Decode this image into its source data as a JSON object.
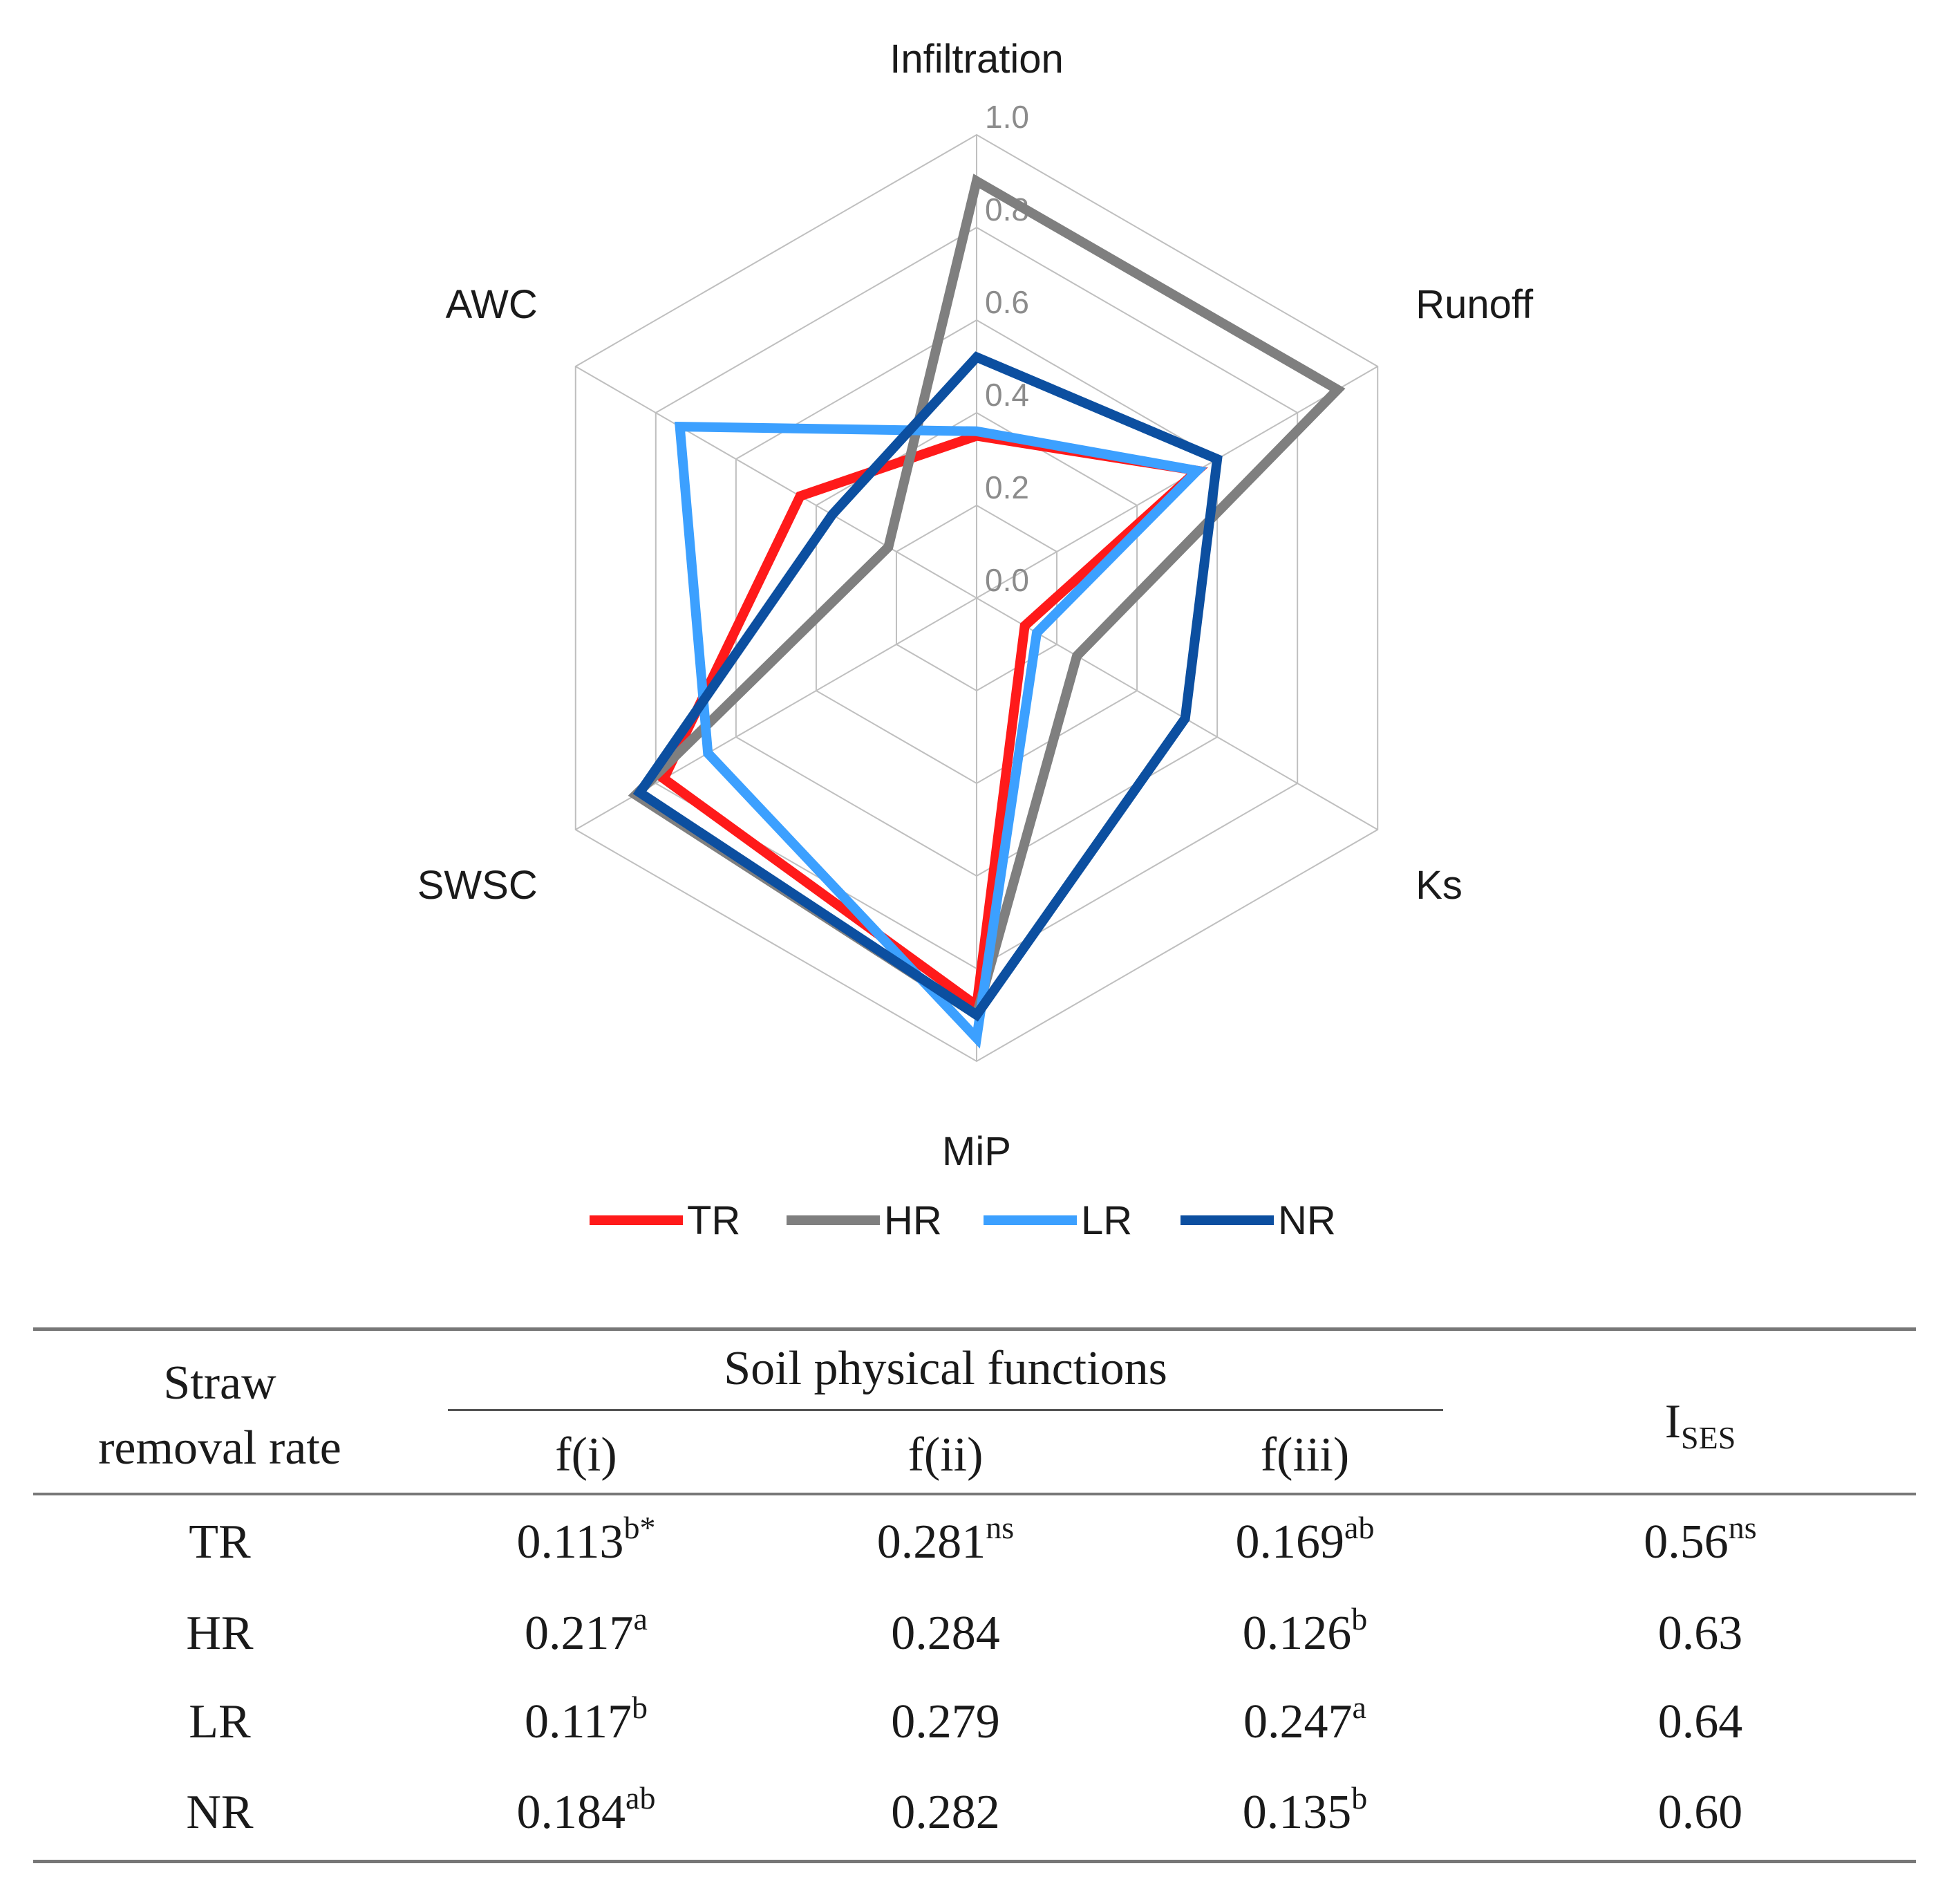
{
  "chart_data": {
    "type": "radar",
    "axes": [
      "Infiltration",
      "Runoff",
      "Ks",
      "MiP",
      "SWSC",
      "AWC"
    ],
    "rlim": [
      0.0,
      1.0
    ],
    "ticks": [
      "0.0",
      "0.2",
      "0.4",
      "0.6",
      "0.8",
      "1.0"
    ],
    "tick_values": [
      0.0,
      0.2,
      0.4,
      0.6,
      0.8,
      1.0
    ],
    "legend_position": "bottom",
    "series": [
      {
        "name": "TR",
        "color": "#ff1a1a",
        "values": [
          0.35,
          0.55,
          0.12,
          0.88,
          0.78,
          0.44
        ]
      },
      {
        "name": "HR",
        "color": "#7f7f7f",
        "values": [
          0.9,
          0.9,
          0.25,
          0.9,
          0.85,
          0.22
        ]
      },
      {
        "name": "LR",
        "color": "#3ca0ff",
        "values": [
          0.36,
          0.55,
          0.15,
          0.95,
          0.67,
          0.74
        ]
      },
      {
        "name": "NR",
        "color": "#0c4fa0",
        "values": [
          0.52,
          0.6,
          0.52,
          0.9,
          0.84,
          0.36
        ]
      }
    ]
  },
  "table": {
    "col_headers": {
      "straw_line1": "Straw",
      "straw_line2": "removal rate",
      "group": "Soil physical functions",
      "f1": "f(i)",
      "f2": "f(ii)",
      "f3": "f(iii)",
      "ises_base": "I",
      "ises_sub": "SES"
    },
    "rows": [
      {
        "label": "TR",
        "f1": "0.113",
        "f1_sup": "b*",
        "f2": "0.281",
        "f2_sup": "ns",
        "f3": "0.169",
        "f3_sup": "ab",
        "ises": "0.56",
        "ises_sup": "ns"
      },
      {
        "label": "HR",
        "f1": "0.217",
        "f1_sup": "a",
        "f2": "0.284",
        "f2_sup": "",
        "f3": "0.126",
        "f3_sup": "b",
        "ises": "0.63",
        "ises_sup": ""
      },
      {
        "label": "LR",
        "f1": "0.117",
        "f1_sup": "b",
        "f2": "0.279",
        "f2_sup": "",
        "f3": "0.247",
        "f3_sup": "a",
        "ises": "0.64",
        "ises_sup": ""
      },
      {
        "label": "NR",
        "f1": "0.184",
        "f1_sup": "ab",
        "f2": "0.282",
        "f2_sup": "",
        "f3": "0.135",
        "f3_sup": "b",
        "ises": "0.60",
        "ises_sup": ""
      }
    ]
  }
}
